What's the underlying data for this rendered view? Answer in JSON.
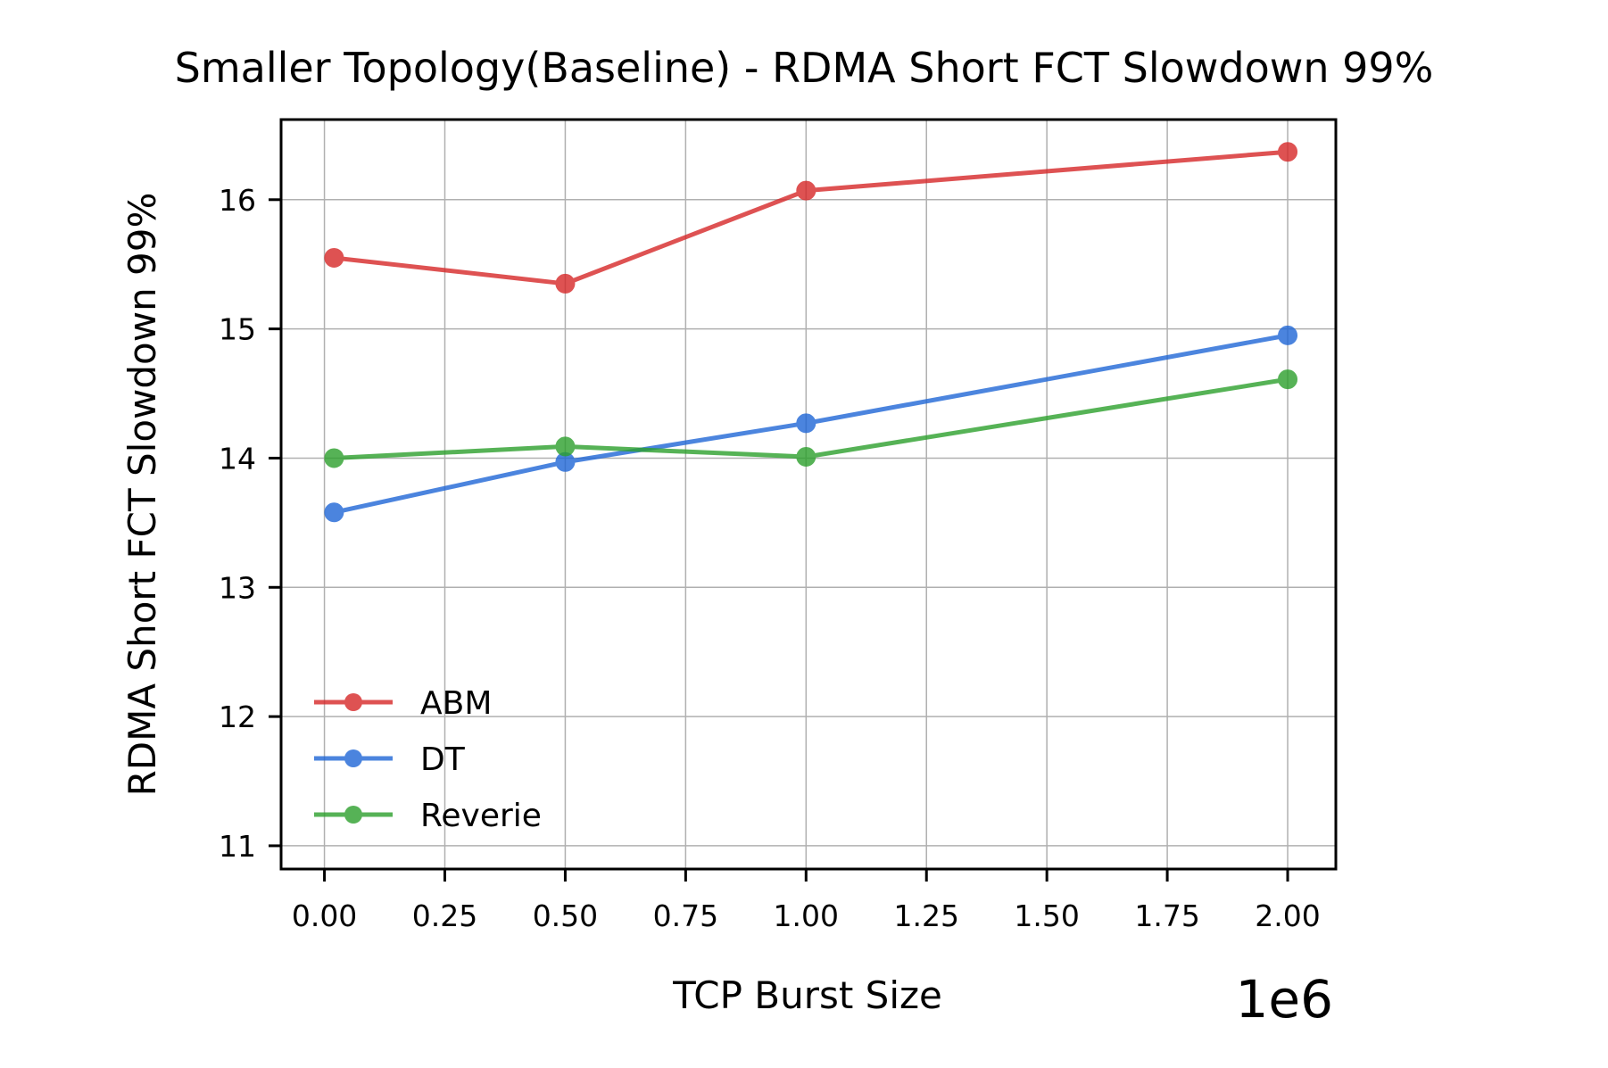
{
  "chart_data": {
    "type": "line",
    "title": "Smaller Topology(Baseline) - RDMA Short FCT Slowdown 99%",
    "xlabel": "TCP Burst Size",
    "ylabel": "RDMA Short FCT Slowdown 99%",
    "x_offset_label": "1e6",
    "x": [
      0.02,
      0.5,
      1.0,
      2.0
    ],
    "xlim": [
      -0.09,
      2.1
    ],
    "ylim": [
      10.82,
      16.62
    ],
    "x_ticks": [
      0.0,
      0.25,
      0.5,
      0.75,
      1.0,
      1.25,
      1.5,
      1.75,
      2.0
    ],
    "x_tick_labels": [
      "0.00",
      "0.25",
      "0.50",
      "0.75",
      "1.00",
      "1.25",
      "1.50",
      "1.75",
      "2.00"
    ],
    "y_ticks": [
      11,
      12,
      13,
      14,
      15,
      16
    ],
    "y_tick_labels": [
      "11",
      "12",
      "13",
      "14",
      "15",
      "16"
    ],
    "grid": true,
    "legend_position": "lower-left",
    "series": [
      {
        "name": "ABM",
        "color": "#d62728",
        "values": [
          15.55,
          15.35,
          16.07,
          16.37
        ]
      },
      {
        "name": "DT",
        "color": "#1f66d6",
        "values": [
          13.58,
          13.97,
          14.27,
          14.95
        ]
      },
      {
        "name": "Reverie",
        "color": "#2ca02c",
        "values": [
          14.0,
          14.09,
          14.01,
          14.61
        ]
      }
    ]
  }
}
